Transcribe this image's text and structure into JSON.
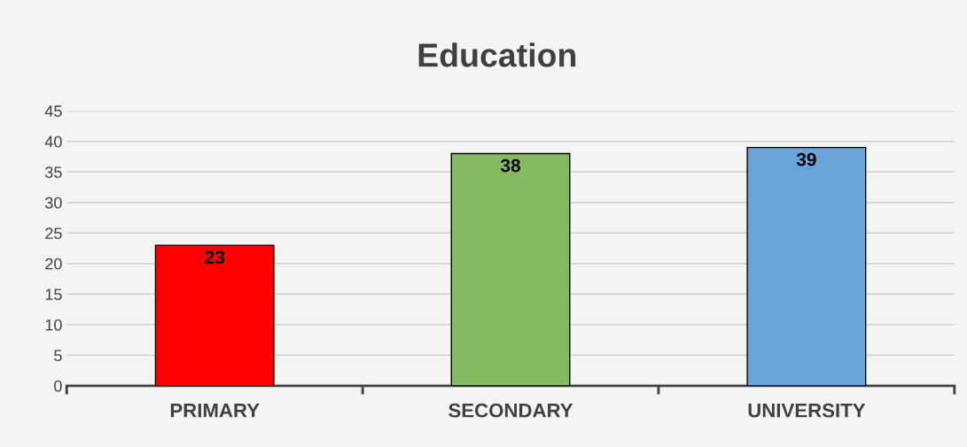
{
  "chart_data": {
    "type": "bar",
    "title": "Education",
    "categories": [
      "PRIMARY",
      "SECONDARY",
      "UNIVERSITY"
    ],
    "values": [
      23,
      38,
      39
    ],
    "colors": [
      "#ff0000",
      "#84bb62",
      "#6ba4da"
    ],
    "ylim": [
      0,
      45
    ],
    "yticks": [
      0,
      5,
      10,
      15,
      20,
      25,
      30,
      35,
      40,
      45
    ],
    "grid": "y",
    "data_labels": true
  }
}
